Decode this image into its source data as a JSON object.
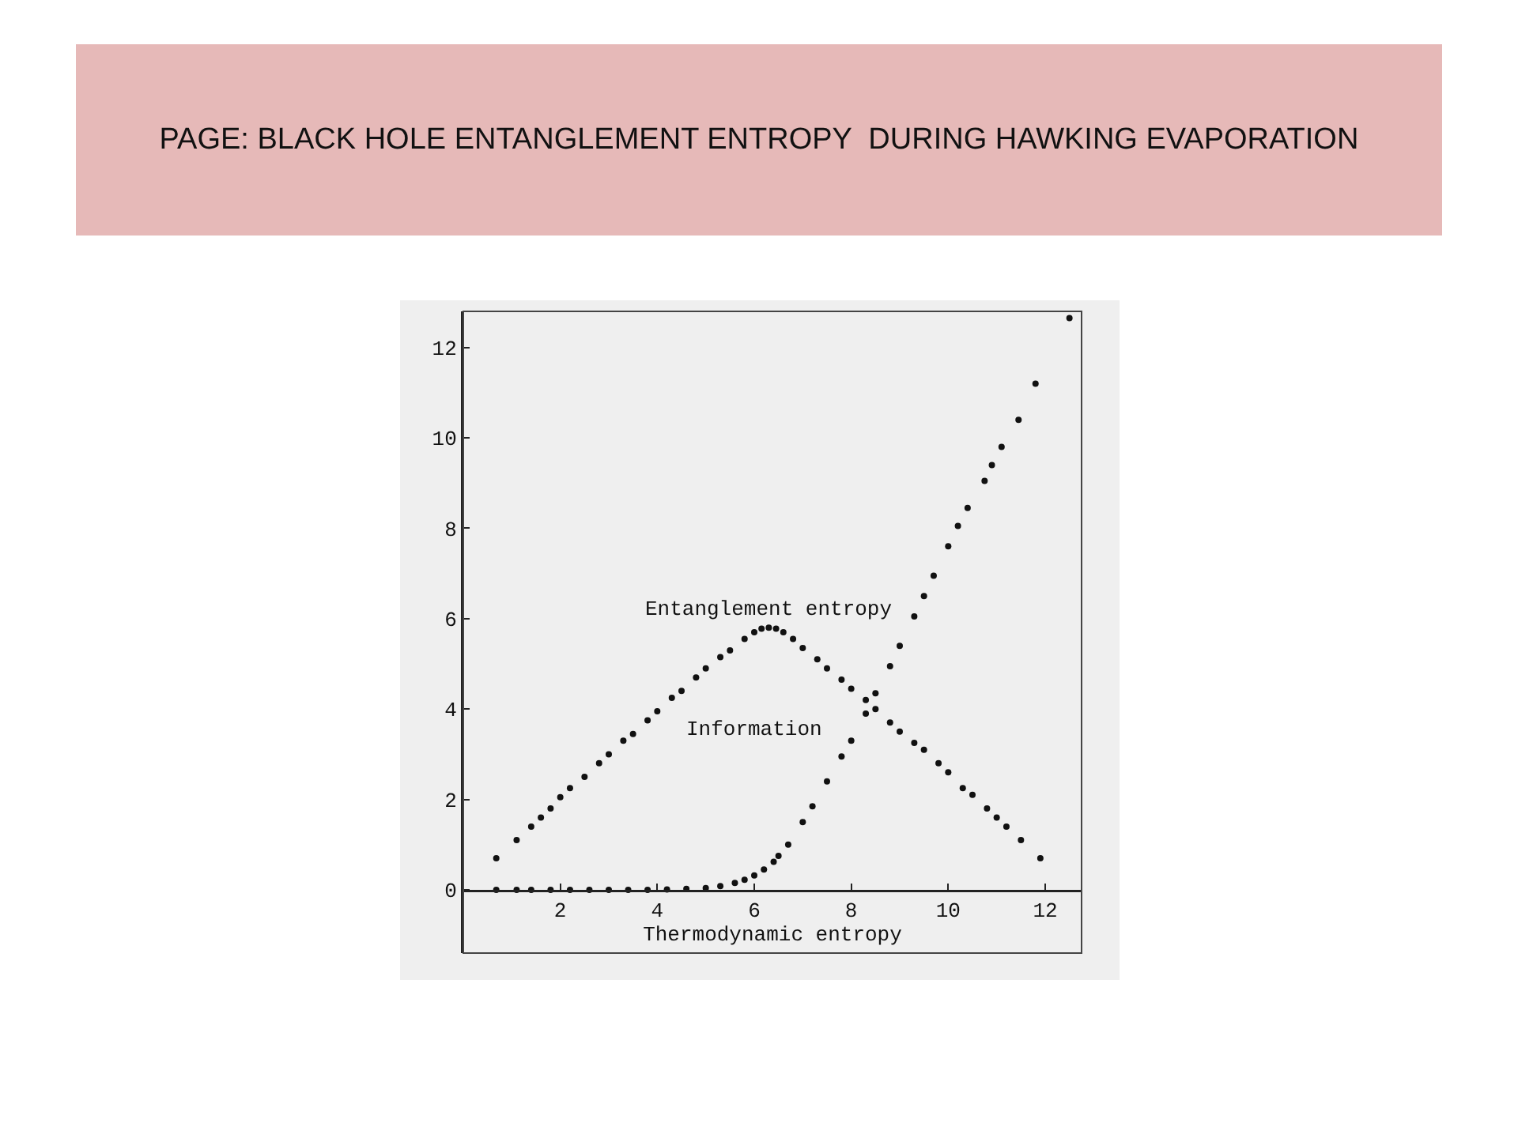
{
  "chart_data": {
    "type": "scatter",
    "title": "PAGE: BLACK HOLE ENTANGLEMENT ENTROPY  DURING HAWKING EVAPORATION",
    "xlabel": "Thermodynamic entropy",
    "series": [
      {
        "color": "#111111",
        "x": [
          0.68,
          1.1,
          1.4,
          1.6,
          1.8,
          2.0,
          2.2,
          2.5,
          2.8,
          3.0,
          3.3,
          3.5,
          3.8,
          4.0,
          4.3,
          4.5,
          4.8,
          5.0,
          5.3,
          5.5,
          5.8,
          6.0,
          6.15,
          6.3,
          6.45,
          6.6,
          6.8,
          7.0,
          7.3,
          7.5,
          7.8,
          8.0,
          8.3,
          8.5,
          8.8,
          9.0,
          9.3,
          9.5,
          9.8,
          10.0,
          10.3,
          10.5,
          10.8,
          11.0,
          11.2,
          11.5,
          11.9
        ],
        "values": [
          0.7,
          1.1,
          1.4,
          1.6,
          1.8,
          2.05,
          2.25,
          2.5,
          2.8,
          3.0,
          3.3,
          3.45,
          3.75,
          3.95,
          4.25,
          4.4,
          4.7,
          4.9,
          5.15,
          5.3,
          5.55,
          5.7,
          5.78,
          5.8,
          5.78,
          5.7,
          5.55,
          5.35,
          5.1,
          4.9,
          4.65,
          4.45,
          4.2,
          4.0,
          3.7,
          3.5,
          3.25,
          3.1,
          2.8,
          2.6,
          2.25,
          2.1,
          1.8,
          1.6,
          1.4,
          1.1,
          0.7
        ]
      },
      {
        "color": "#111111",
        "x": [
          0.68,
          1.1,
          1.4,
          1.8,
          2.2,
          2.6,
          3.0,
          3.4,
          3.8,
          4.2,
          4.6,
          5.0,
          5.3,
          5.6,
          5.8,
          6.0,
          6.2,
          6.4,
          6.5,
          6.7,
          7.0,
          7.2,
          7.5,
          7.8,
          8.0,
          8.3,
          8.5,
          8.8,
          9.0,
          9.3,
          9.5,
          9.7,
          10.0,
          10.2,
          10.4,
          10.75,
          10.9,
          11.1,
          11.45,
          11.8,
          12.5
        ],
        "values": [
          0,
          0,
          0,
          0,
          0,
          0,
          0,
          0,
          0,
          0.01,
          0.02,
          0.04,
          0.08,
          0.15,
          0.22,
          0.32,
          0.45,
          0.62,
          0.75,
          1.0,
          1.5,
          1.85,
          2.4,
          2.95,
          3.3,
          3.9,
          4.35,
          4.95,
          5.4,
          6.05,
          6.5,
          6.95,
          7.6,
          8.05,
          8.45,
          9.05,
          9.4,
          9.8,
          10.4,
          11.2,
          12.65
        ]
      }
    ],
    "annotations": [
      "Entanglement entropy",
      "Information"
    ],
    "xlim": [
      0,
      12.75
    ],
    "ylim": [
      -1.4,
      12.8
    ],
    "xticks": [
      2,
      4,
      6,
      8,
      10,
      12
    ],
    "yticks": [
      0,
      2,
      4,
      6,
      8,
      10,
      12
    ],
    "grid": false,
    "marker": "circle"
  }
}
